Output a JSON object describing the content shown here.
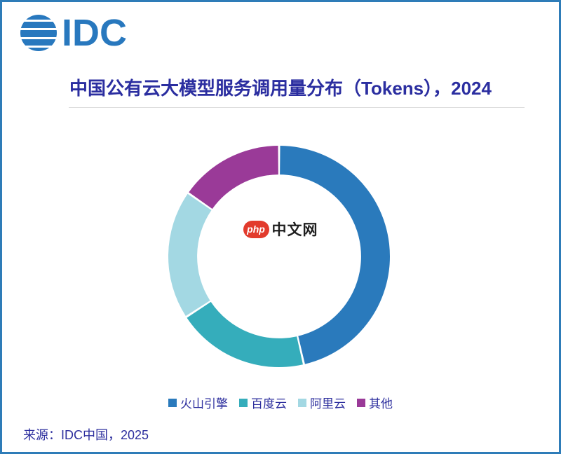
{
  "header": {
    "logo_text": "IDC"
  },
  "chart_data": {
    "type": "pie",
    "subtype": "donut",
    "title": "中国公有云大模型服务调用量分布（Tokens），2024",
    "unit": "% share (estimated from arc angles, no data labels shown)",
    "segments": [
      {
        "name": "volcano-engine",
        "label": "火山引擎",
        "value": 46.4,
        "color": "#2A7ABC"
      },
      {
        "name": "baidu-cloud",
        "label": "百度云",
        "value": 19.4,
        "color": "#35ADBB"
      },
      {
        "name": "alibaba-cloud",
        "label": "阿里云",
        "value": 18.9,
        "color": "#A3D8E3"
      },
      {
        "name": "others",
        "label": "其他",
        "value": 15.3,
        "color": "#9A3A98"
      }
    ],
    "start_angle_deg": 0,
    "direction": "clockwise",
    "inner_radius_ratio": 0.74,
    "segment_gap_deg": 1.1,
    "legend_position": "bottom",
    "values_shown_on_chart": false
  },
  "watermark": {
    "badge_text": "php",
    "site_text": "中文网"
  },
  "footer": {
    "source": "来源：IDC中国，2025"
  },
  "colors": {
    "border": "#2E7CB8",
    "logo": "#2878BE",
    "title_text": "#2B2EA0",
    "legend_text": "#2D2F9E",
    "source_text": "#2D2F9E",
    "divider": "#DCDCDC",
    "watermark_badge": "#E23B2D",
    "watermark_text": "#1F1F1F",
    "background": "#FFFFFF"
  }
}
